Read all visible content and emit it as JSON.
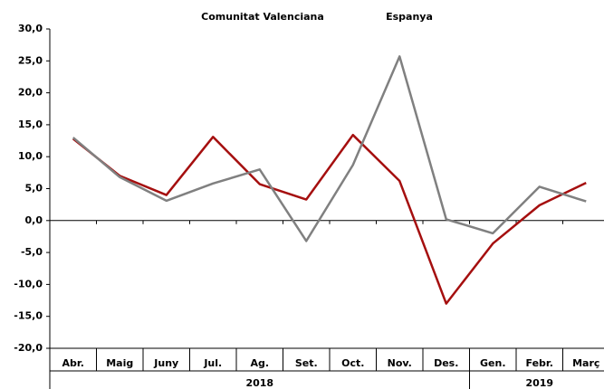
{
  "chart_data": {
    "type": "line",
    "groups": [
      {
        "label": "2018",
        "categories": [
          "Abr.",
          "Maig",
          "Juny",
          "Jul.",
          "Ag.",
          "Set.",
          "Oct.",
          "Nov.",
          "Des."
        ]
      },
      {
        "label": "2019",
        "categories": [
          "Gen.",
          "Febr.",
          "Març"
        ]
      }
    ],
    "series": [
      {
        "name": "Comunitat Valenciana",
        "color": "#a50f0f",
        "values": [
          12.8,
          7.0,
          4.0,
          13.1,
          5.7,
          3.3,
          13.4,
          6.2,
          -13.0,
          -3.6,
          2.4,
          5.9
        ]
      },
      {
        "name": "Espanya",
        "color": "#808080",
        "values": [
          13.0,
          6.8,
          3.1,
          5.8,
          8.0,
          -3.2,
          8.7,
          25.7,
          0.2,
          -2.0,
          5.3,
          3.0
        ]
      }
    ],
    "ylim": [
      -20,
      30
    ],
    "yticks": [
      {
        "value": -20,
        "label": "-20,0"
      },
      {
        "value": -15,
        "label": "-15,0"
      },
      {
        "value": -10,
        "label": "-10,0"
      },
      {
        "value": -5,
        "label": "-5,0"
      },
      {
        "value": 0,
        "label": "0,0"
      },
      {
        "value": 5,
        "label": "5,0"
      },
      {
        "value": 10,
        "label": "10,0"
      },
      {
        "value": 15,
        "label": "15,0"
      },
      {
        "value": 20,
        "label": "20,0"
      },
      {
        "value": 25,
        "label": "25,0"
      },
      {
        "value": 30,
        "label": "30,0"
      }
    ]
  }
}
